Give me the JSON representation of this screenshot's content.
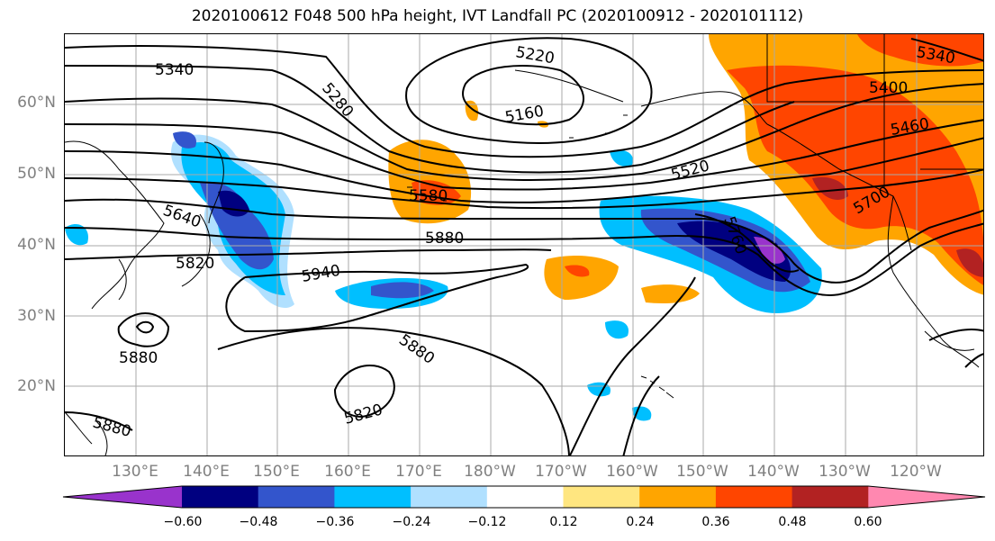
{
  "title": "2020100612 F048 500 hPa height, IVT Landfall PC (2020100912 - 2020101112)",
  "lat_labels": [
    "60°N",
    "50°N",
    "40°N",
    "30°N",
    "20°N"
  ],
  "lon_labels": [
    "130°E",
    "140°E",
    "150°E",
    "160°E",
    "170°E",
    "180°W",
    "170°W",
    "160°W",
    "150°W",
    "140°W",
    "130°W",
    "120°W"
  ],
  "contour_labels": [
    "5340",
    "5280",
    "5220",
    "5160",
    "5340",
    "5400",
    "5460",
    "5520",
    "5580",
    "5640",
    "5700",
    "5760",
    "5880",
    "5820",
    "5940",
    "5880",
    "5880",
    "5880",
    "5820"
  ],
  "colorbar": {
    "tick_labels": [
      "−0.60",
      "−0.48",
      "−0.36",
      "−0.24",
      "−0.12",
      "0.12",
      "0.24",
      "0.36",
      "0.48",
      "0.60"
    ],
    "colors": [
      "#9933cc",
      "#000080",
      "#3355cc",
      "#00bfff",
      "#b0e0ff",
      "#ffffff",
      "#ffe680",
      "#ffa500",
      "#ff4500",
      "#b22222",
      "#ff88b0"
    ]
  },
  "colors": {
    "land_coast": "#000000",
    "grid": "#aaaaaa",
    "contour": "#000000"
  }
}
